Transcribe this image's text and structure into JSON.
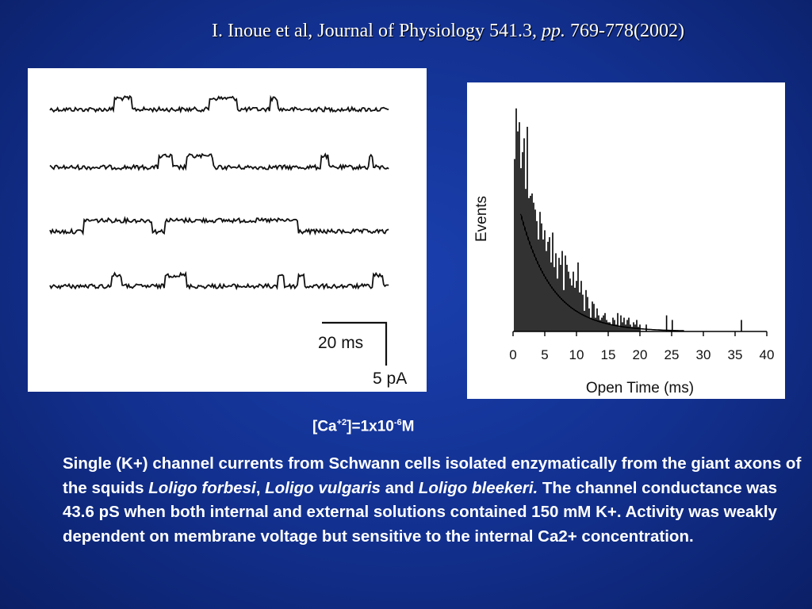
{
  "title": {
    "part1": "I. Inoue et al, Journal of Physiology 541.3,",
    "pp": "pp.",
    "part2": "769-778(2002)"
  },
  "traces": {
    "scale_time": "20 ms",
    "scale_current": "5 pA",
    "open_periods_by_trace": [
      [
        [
          0.19,
          0.24
        ],
        [
          0.47,
          0.55
        ],
        [
          0.65,
          0.67
        ]
      ],
      [
        [
          0.32,
          0.36
        ],
        [
          0.4,
          0.48
        ],
        [
          0.8,
          0.82
        ],
        [
          0.94,
          0.95
        ]
      ],
      [
        [
          0.1,
          0.3
        ],
        [
          0.34,
          0.73
        ]
      ],
      [
        [
          0.18,
          0.21
        ],
        [
          0.34,
          0.4
        ],
        [
          0.67,
          0.69
        ],
        [
          0.73,
          0.75
        ],
        [
          0.95,
          0.98
        ]
      ]
    ]
  },
  "chart_data": {
    "type": "bar",
    "xlabel": "Open Time (ms)",
    "ylabel": "Events",
    "xlim": [
      0,
      40
    ],
    "xticks": [
      "0",
      "5",
      "10",
      "15",
      "20",
      "25",
      "30",
      "35",
      "40"
    ],
    "bar_bin_ms": 0.25,
    "bar_heights_relative": [
      0.75,
      0.97,
      0.87,
      0.91,
      0.71,
      0.78,
      0.84,
      0.62,
      0.89,
      0.58,
      0.59,
      0.6,
      0.56,
      0.53,
      0.48,
      0.4,
      0.52,
      0.47,
      0.4,
      0.44,
      0.35,
      0.39,
      0.41,
      0.3,
      0.43,
      0.28,
      0.34,
      0.23,
      0.32,
      0.29,
      0.35,
      0.18,
      0.33,
      0.29,
      0.26,
      0.23,
      0.2,
      0.26,
      0.19,
      0.22,
      0.3,
      0.17,
      0.22,
      0.16,
      0.09,
      0.18,
      0.15,
      0.1,
      0.06,
      0.13,
      0.12,
      0.06,
      0.1,
      0.07,
      0.05,
      0.06,
      0.07,
      0.08,
      0.05,
      0.04,
      0.04,
      0.03,
      0.06,
      0.05,
      0.03,
      0.08,
      0.02,
      0.07,
      0.04,
      0.06,
      0.03,
      0.05,
      0.06,
      0.03,
      0.02,
      0.04,
      0.03,
      0.05,
      0.02,
      0.03
    ],
    "sparse_bars": [
      {
        "x": 21.0,
        "h": 0.03
      },
      {
        "x": 24.2,
        "h": 0.07
      },
      {
        "x": 25.1,
        "h": 0.05
      },
      {
        "x": 36.0,
        "h": 0.05
      }
    ],
    "fit_curve": {
      "type": "exponential",
      "y0_relative": 0.65,
      "tau_ms": 5.0
    }
  },
  "concentration_label": {
    "prefix": "[Ca",
    "charge": "+2",
    "middle": "]=1x10",
    "exponent": "-6",
    "unit": "M"
  },
  "description": {
    "text1": "Single (K+) channel currents from Schwann cells isolated enzymatically from the giant axons of the squids ",
    "species1": "Loligo forbesi",
    "sep1": ", ",
    "species2": "Loligo vulgaris",
    "sep2": " and ",
    "species3": "Loligo bleekeri.",
    "text2": " The channel conductance was 43.6 pS when both internal and external solutions contained 150 mM K+. Activity was weakly dependent on membrane voltage but sensitive to the internal Ca2+ concentration."
  }
}
